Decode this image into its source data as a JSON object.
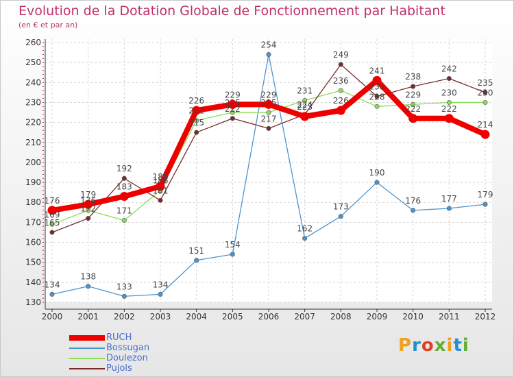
{
  "header": {
    "title": "Evolution de la Dotation Globale de Fonctionnement par Habitant",
    "subtitle": "(en € et par an)"
  },
  "logo": {
    "text": "Proxiti",
    "colors": [
      "#f0a020",
      "#2090d0",
      "#e04020",
      "#60b030",
      "#f0a020",
      "#2090d0",
      "#60b030"
    ]
  },
  "chart_data": {
    "type": "line",
    "title": "Evolution de la Dotation Globale de Fonctionnement par Habitant",
    "subtitle": "(en € et par an)",
    "xlabel": "",
    "ylabel": "",
    "categories": [
      "2000",
      "2001",
      "2002",
      "2003",
      "2004",
      "2005",
      "2006",
      "2007",
      "2008",
      "2009",
      "2010",
      "2011",
      "2012"
    ],
    "ylim": [
      130,
      260
    ],
    "yticks": [
      130,
      140,
      150,
      160,
      170,
      180,
      190,
      200,
      210,
      220,
      230,
      240,
      250,
      260
    ],
    "grid": true,
    "legend_position": "bottom-left",
    "series": [
      {
        "name": "RUCH",
        "color": "#ee0000",
        "values": [
          176,
          179,
          183,
          188,
          226,
          229,
          229,
          223,
          226,
          241,
          222,
          222,
          214
        ]
      },
      {
        "name": "Bossugan",
        "color": "#4b94d0",
        "values": [
          134,
          138,
          133,
          134,
          151,
          154,
          254,
          162,
          173,
          190,
          176,
          177,
          179
        ]
      },
      {
        "name": "Doulezon",
        "color": "#88dd55",
        "values": [
          169,
          176,
          171,
          186,
          221,
          225,
          225,
          231,
          236,
          228,
          229,
          230,
          230
        ]
      },
      {
        "name": "Pujols",
        "color": "#7a2a2a",
        "values": [
          165,
          172,
          192,
          181,
          215,
          222,
          217,
          224,
          249,
          233,
          238,
          242,
          235
        ]
      }
    ]
  }
}
